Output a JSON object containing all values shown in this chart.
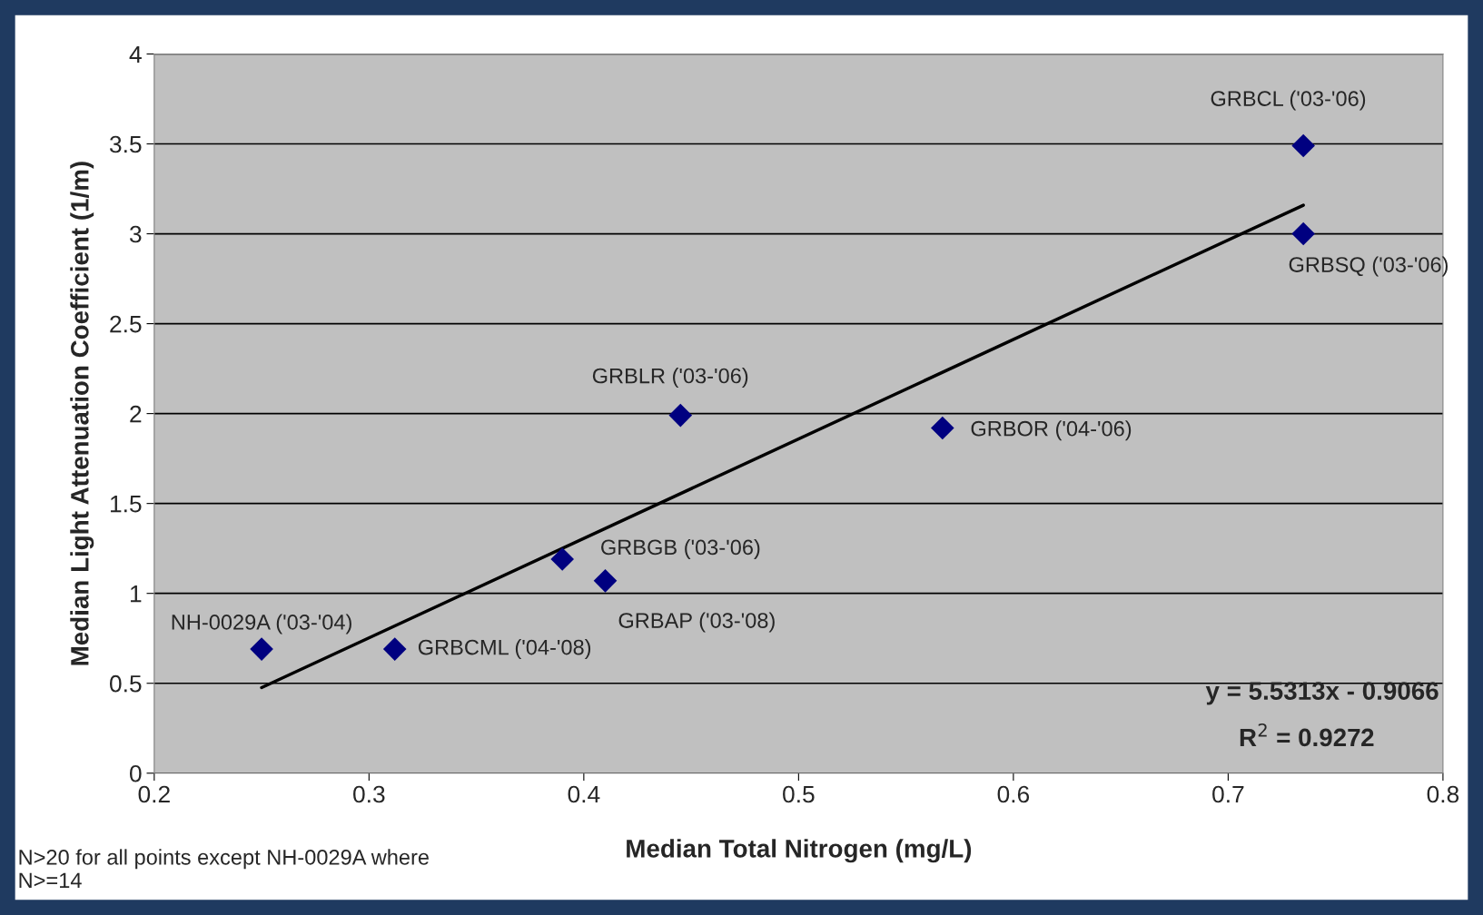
{
  "chart_data": {
    "type": "scatter",
    "xlabel": "Median Total Nitrogen (mg/L)",
    "ylabel": "Median Light Attenuation Coefficient (1/m)",
    "series": [
      {
        "color": "#000080",
        "marker": "diamond",
        "x": [
          0.25,
          0.312,
          0.39,
          0.41,
          0.445,
          0.567,
          0.735,
          0.735
        ],
        "values": [
          0.69,
          0.69,
          1.19,
          1.07,
          1.99,
          1.92,
          3.49,
          3.0
        ]
      },
      {
        "type": "line",
        "color": "#000000",
        "marker": "none",
        "x": [
          0.25,
          0.735
        ],
        "values": [
          0.476,
          3.159
        ]
      }
    ],
    "xlim": [
      0.2,
      0.8
    ],
    "xticks": [
      0.2,
      0.3,
      0.4,
      0.5,
      0.6,
      0.7,
      0.8
    ],
    "ylim": [
      0,
      4
    ],
    "yticks": [
      0,
      0.5,
      1,
      1.5,
      2,
      2.5,
      3,
      3.5,
      4
    ],
    "grid": "y",
    "legend": false,
    "annotations": [
      {
        "text": "NH-0029A ('03-'04)",
        "x": 0.25,
        "y": 0.69
      },
      {
        "text": "GRBCML ('04-'08)",
        "x": 0.312,
        "y": 0.69
      },
      {
        "text": "GRBGB ('03-'06)",
        "x": 0.39,
        "y": 1.19
      },
      {
        "text": "GRBAP ('03-'08)",
        "x": 0.41,
        "y": 1.07
      },
      {
        "text": "GRBLR ('03-'06)",
        "x": 0.445,
        "y": 1.99
      },
      {
        "text": "GRBOR ('04-'06)",
        "x": 0.567,
        "y": 1.92
      },
      {
        "text": "GRBCL ('03-'06)",
        "x": 0.735,
        "y": 3.49
      },
      {
        "text": "GRBSQ ('03-'06)",
        "x": 0.735,
        "y": 3.0
      },
      "y = 5.5313x - 0.9066",
      "R$^{2}$ = 0.9272",
      "N>20 for all points except NH-0029A where\nN>=14"
    ]
  }
}
